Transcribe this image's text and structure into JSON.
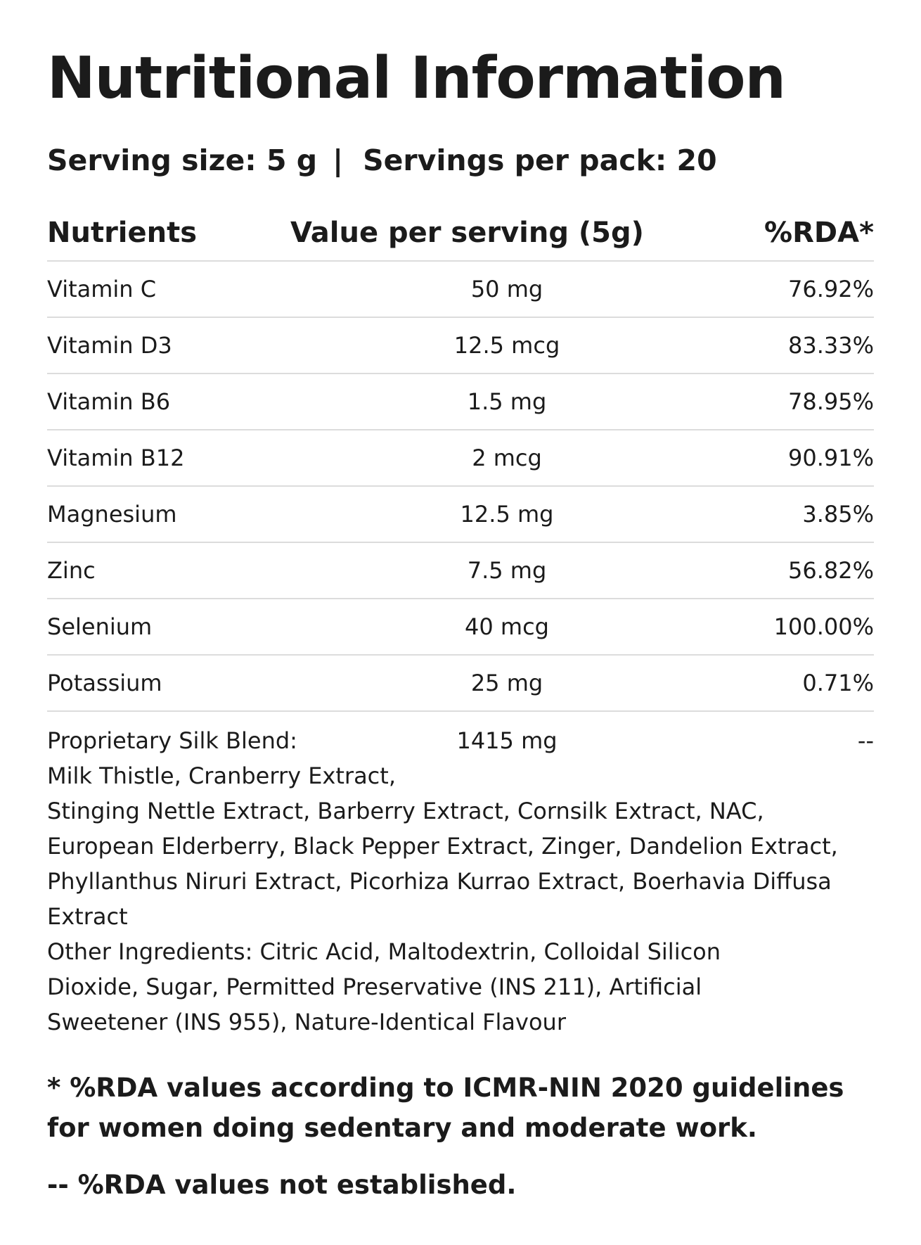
{
  "title": "Nutritional Information",
  "serving": {
    "size": "Serving size: 5 g",
    "separator": "|",
    "servings": "Servings per pack: 20"
  },
  "table": {
    "headers": {
      "nutrients": "Nutrients",
      "value": "Value per serving (5g)",
      "rda": "%RDA*"
    },
    "rows": [
      {
        "name": "Vitamin C",
        "value": "50 mg",
        "rda": "76.92%"
      },
      {
        "name": "Vitamin D3",
        "value": "12.5 mcg",
        "rda": "83.33%"
      },
      {
        "name": "Vitamin B6",
        "value": "1.5 mg",
        "rda": "78.95%"
      },
      {
        "name": "Vitamin B12",
        "value": "2 mcg",
        "rda": "90.91%"
      },
      {
        "name": "Magnesium",
        "value": "12.5 mg",
        "rda": "3.85%"
      },
      {
        "name": "Zinc",
        "value": "7.5 mg",
        "rda": "56.82%"
      },
      {
        "name": "Selenium",
        "value": "40 mcg",
        "rda": "100.00%"
      },
      {
        "name": "Potassium",
        "value": "25 mg",
        "rda": "0.71%"
      }
    ],
    "blend": {
      "label": "Proprietary Silk Blend:",
      "value": "1415 mg",
      "rda": "--",
      "line1": "Milk Thistle, Cranberry Extract,",
      "line2": "Stinging Nettle Extract, Barberry Extract, Cornsilk Extract, NAC, European Elderberry, Black Pepper Extract, Zinger, Dandelion Extract, Phyllanthus Niruri Extract, Picorhiza Kurrao Extract, Boerhavia Diffusa Extract"
    }
  },
  "other_ingredients": "Other Ingredients: Citric Acid, Maltodextrin, Colloidal Silicon Dioxide, Sugar, Permitted Preservative (INS 211), Artificial Sweetener (INS 955), Nature-Identical Flavour",
  "footnotes": {
    "rda_note": "* %RDA values according to ICMR-NIN 2020 guidelines for women doing sedentary and moderate work.",
    "not_established": "-- %RDA values not established."
  }
}
